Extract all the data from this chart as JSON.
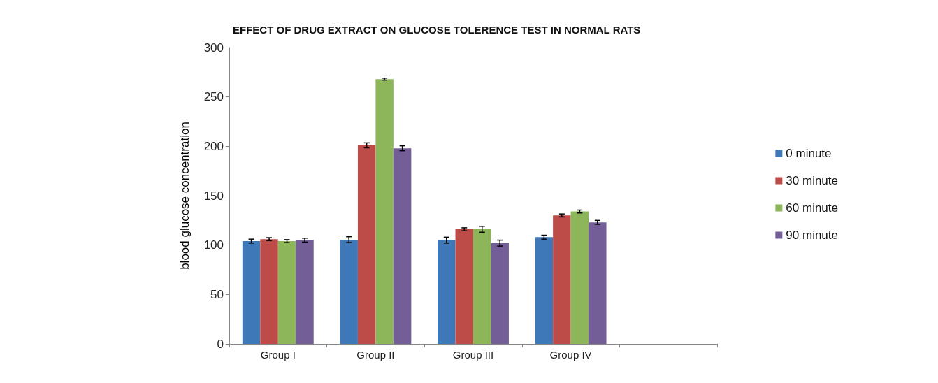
{
  "chart_data": {
    "type": "bar",
    "title": "EFFECT OF DRUG EXTRACT ON GLUCOSE TOLERENCE TEST IN NORMAL RATS",
    "ylabel": "blood glucose concentration",
    "categories": [
      "Group I",
      "Group II",
      "Group III",
      "Group IV",
      null
    ],
    "series": [
      {
        "name": "0 minute",
        "color": "#3e78b9",
        "values": [
          104,
          105.5,
          105,
          108,
          null
        ],
        "errors": [
          2,
          3,
          3,
          2,
          null
        ]
      },
      {
        "name": "30 minute",
        "color": "#bd4b48",
        "values": [
          106,
          201,
          116,
          130,
          null
        ],
        "errors": [
          1.5,
          2.5,
          1.5,
          1.5,
          null
        ]
      },
      {
        "name": "60 minute",
        "color": "#8db65a",
        "values": [
          104,
          268,
          116,
          134,
          null
        ],
        "errors": [
          1.5,
          1,
          3,
          1.5,
          null
        ]
      },
      {
        "name": "90 minute",
        "color": "#735e98",
        "values": [
          105,
          198,
          102,
          123,
          null
        ],
        "errors": [
          2,
          2.5,
          3,
          2,
          null
        ]
      }
    ],
    "ylim": [
      0,
      300
    ],
    "yticks": [
      0,
      50,
      100,
      150,
      200,
      250,
      300
    ],
    "grid": false,
    "legend": "right"
  }
}
